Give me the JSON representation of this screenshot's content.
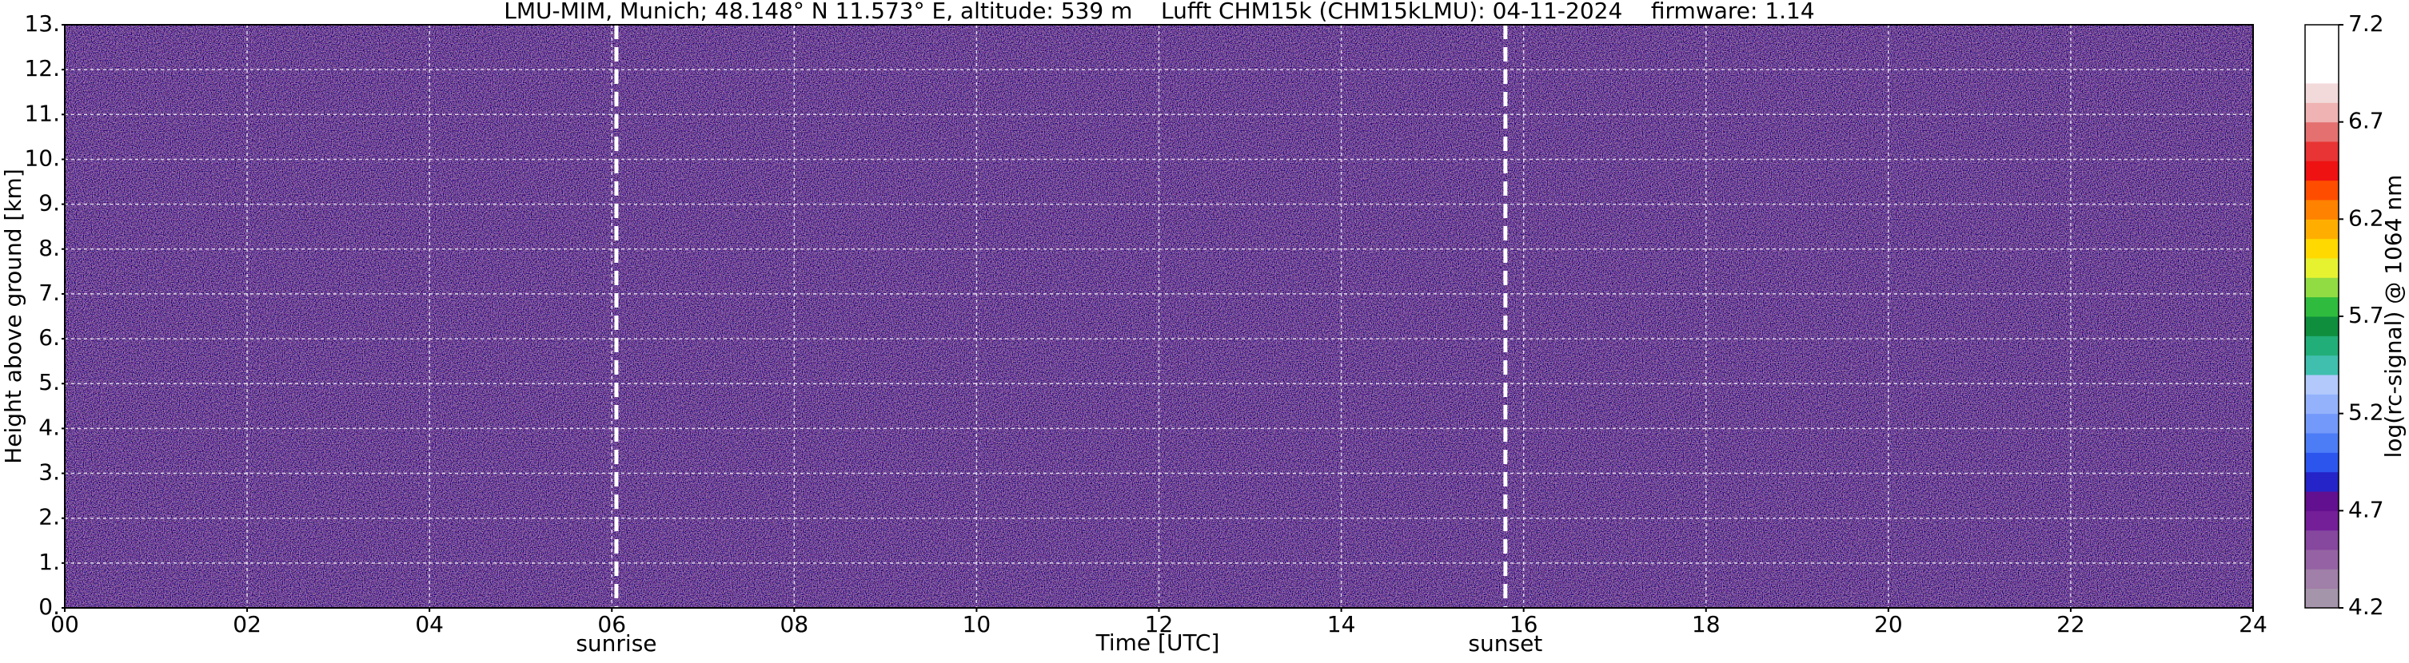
{
  "chart_data": {
    "type": "heatmap",
    "title": "LMU-MIM, Munich; 48.148° N 11.573° E, altitude: 539 m    Lufft CHM15k (CHM15kLMU): 04-11-2024    firmware: 1.14",
    "x_label": "Time [UTC]",
    "y_label": "Height above ground [km]",
    "xlim": [
      0,
      24
    ],
    "xticks": [
      {
        "value": 0,
        "label": "00"
      },
      {
        "value": 2,
        "label": "02"
      },
      {
        "value": 4,
        "label": "04"
      },
      {
        "value": 6,
        "label": "06"
      },
      {
        "value": 8,
        "label": "08"
      },
      {
        "value": 10,
        "label": "10"
      },
      {
        "value": 12,
        "label": "12"
      },
      {
        "value": 14,
        "label": "14"
      },
      {
        "value": 16,
        "label": "16"
      },
      {
        "value": 18,
        "label": "18"
      },
      {
        "value": 20,
        "label": "20"
      },
      {
        "value": 22,
        "label": "22"
      },
      {
        "value": 24,
        "label": "24"
      }
    ],
    "ylim": [
      0,
      13
    ],
    "yticks": [
      {
        "value": 0,
        "label": "0."
      },
      {
        "value": 1,
        "label": "1."
      },
      {
        "value": 2,
        "label": "2."
      },
      {
        "value": 3,
        "label": "3."
      },
      {
        "value": 4,
        "label": "4."
      },
      {
        "value": 5,
        "label": "5."
      },
      {
        "value": 6,
        "label": "6."
      },
      {
        "value": 7,
        "label": "7."
      },
      {
        "value": 8,
        "label": "8."
      },
      {
        "value": 9,
        "label": "9."
      },
      {
        "value": 10,
        "label": "10."
      },
      {
        "value": 11,
        "label": "11."
      },
      {
        "value": 12,
        "label": "12."
      },
      {
        "value": 13,
        "label": "13."
      }
    ],
    "grid": true,
    "annotations": [
      {
        "text": "sunrise",
        "x": 6.05
      },
      {
        "text": "sunset",
        "x": 15.8
      }
    ],
    "colorbar": {
      "label": "log(rc-signal) @ 1064 nm",
      "lim": [
        4.2,
        7.2
      ],
      "ticks": [
        4.2,
        4.7,
        5.2,
        5.7,
        6.2,
        6.7,
        7.2
      ],
      "colors": [
        "#a595ab",
        "#a07fa8",
        "#9563a3",
        "#86479e",
        "#741f98",
        "#62108f",
        "#2424c8",
        "#2c55ee",
        "#4d7cf7",
        "#7399fa",
        "#93b2fb",
        "#b3c9fc",
        "#40bfae",
        "#22ae78",
        "#0f8e3e",
        "#2fbb3d",
        "#92dc43",
        "#e6f230",
        "#ffd900",
        "#ffae00",
        "#ff8200",
        "#ff4d00",
        "#ee1212",
        "#e83434",
        "#e47070",
        "#efb3b3",
        "#f3dada",
        "#ffffff",
        "#ffffff",
        "#ffffff"
      ]
    }
  }
}
